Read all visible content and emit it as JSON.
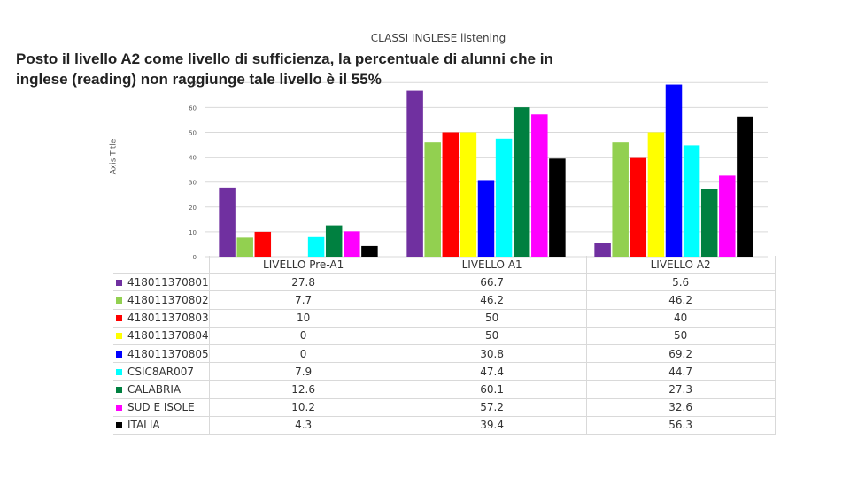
{
  "overlay_text": {
    "line1": "Posto il livello A2 come livello di sufficienza, la percentuale di alunni che in",
    "line2": "inglese (reading) non raggiunge tale livello è  il 55%"
  },
  "chart_data": {
    "type": "bar",
    "title": "CLASSI INGLESE listening",
    "xlabel": "",
    "ylabel": "Axis Title",
    "ylim": [
      0,
      70
    ],
    "yticks": [
      "0",
      "10",
      "20",
      "30",
      "40",
      "50",
      "60",
      "70"
    ],
    "grid": true,
    "legend": "data-table",
    "categories": [
      "LIVELLO Pre-A1",
      "LIVELLO A1",
      "LIVELLO A2"
    ],
    "series": [
      {
        "name": "418011370801",
        "color": "#7030a0",
        "values": [
          "27.8",
          "66.7",
          "5.6"
        ]
      },
      {
        "name": "418011370802",
        "color": "#92d050",
        "values": [
          "7.7",
          "46.2",
          "46.2"
        ]
      },
      {
        "name": "418011370803",
        "color": "#ff0000",
        "values": [
          "10",
          "50",
          "40"
        ]
      },
      {
        "name": "418011370804",
        "color": "#ffff00",
        "values": [
          "0",
          "50",
          "50"
        ]
      },
      {
        "name": "418011370805",
        "color": "#0000ff",
        "values": [
          "0",
          "30.8",
          "69.2"
        ]
      },
      {
        "name": "CSIC8AR007",
        "color": "#00ffff",
        "values": [
          "7.9",
          "47.4",
          "44.7"
        ]
      },
      {
        "name": "CALABRIA",
        "color": "#008040",
        "values": [
          "12.6",
          "60.1",
          "27.3"
        ]
      },
      {
        "name": "SUD E ISOLE",
        "color": "#ff00ff",
        "values": [
          "10.2",
          "57.2",
          "32.6"
        ]
      },
      {
        "name": "ITALIA",
        "color": "#000000",
        "values": [
          "4.3",
          "39.4",
          "56.3"
        ]
      }
    ]
  }
}
